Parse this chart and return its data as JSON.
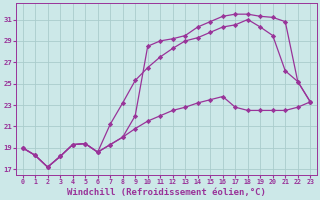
{
  "background_color": "#cce8e8",
  "grid_color": "#aacccc",
  "line_color": "#993399",
  "marker": "D",
  "markersize": 2.2,
  "linewidth": 0.9,
  "xlabel": "Windchill (Refroidissement éolien,°C)",
  "xlabel_fontsize": 6.5,
  "xlim": [
    -0.5,
    23.5
  ],
  "ylim": [
    16.5,
    32.5
  ],
  "xtick_vals": [
    0,
    1,
    2,
    3,
    4,
    5,
    6,
    7,
    8,
    9,
    10,
    11,
    12,
    13,
    14,
    15,
    16,
    17,
    18,
    19,
    20,
    21,
    22,
    23
  ],
  "xtick_labels": [
    "0",
    "1",
    "2",
    "3",
    "4",
    "5",
    "6",
    "7",
    "8",
    "9",
    "10",
    "11",
    "12",
    "13",
    "14",
    "15",
    "16",
    "17",
    "18",
    "19",
    "20",
    "21",
    "22",
    "23"
  ],
  "ytick_vals": [
    17,
    19,
    21,
    23,
    25,
    27,
    29,
    31
  ],
  "ytick_labels": [
    "17",
    "19",
    "21",
    "23",
    "25",
    "27",
    "29",
    "31"
  ],
  "series": [
    {
      "name": "line1_straight",
      "x": [
        0,
        1,
        2,
        3,
        4,
        5,
        6,
        7,
        8,
        9,
        10,
        11,
        12,
        13,
        14,
        15,
        16,
        17,
        18,
        19,
        20,
        21,
        22,
        23
      ],
      "y": [
        19.0,
        18.3,
        17.2,
        18.2,
        19.3,
        19.4,
        18.6,
        19.3,
        20.0,
        20.8,
        21.5,
        22.0,
        22.5,
        22.8,
        23.2,
        23.5,
        23.8,
        22.8,
        22.5,
        22.5,
        22.5,
        22.5,
        22.8,
        23.3
      ]
    },
    {
      "name": "line2_mid",
      "x": [
        0,
        1,
        2,
        3,
        4,
        5,
        6,
        7,
        8,
        9,
        10,
        11,
        12,
        13,
        14,
        15,
        16,
        17,
        18,
        19,
        20,
        21,
        22,
        23
      ],
      "y": [
        19.0,
        18.3,
        17.2,
        18.2,
        19.3,
        19.4,
        18.6,
        21.2,
        23.2,
        25.3,
        26.5,
        27.5,
        28.3,
        29.0,
        29.3,
        29.8,
        30.3,
        30.5,
        31.0,
        30.3,
        29.5,
        26.2,
        25.2,
        23.3
      ]
    },
    {
      "name": "line3_top",
      "x": [
        0,
        1,
        2,
        3,
        4,
        5,
        6,
        7,
        8,
        9,
        10,
        11,
        12,
        13,
        14,
        15,
        16,
        17,
        18,
        19,
        20,
        21,
        22,
        23
      ],
      "y": [
        19.0,
        18.3,
        17.2,
        18.2,
        19.3,
        19.4,
        18.6,
        19.3,
        20.0,
        22.0,
        28.5,
        29.0,
        29.2,
        29.5,
        30.3,
        30.8,
        31.3,
        31.5,
        31.5,
        31.3,
        31.2,
        30.8,
        25.2,
        23.3
      ]
    }
  ]
}
